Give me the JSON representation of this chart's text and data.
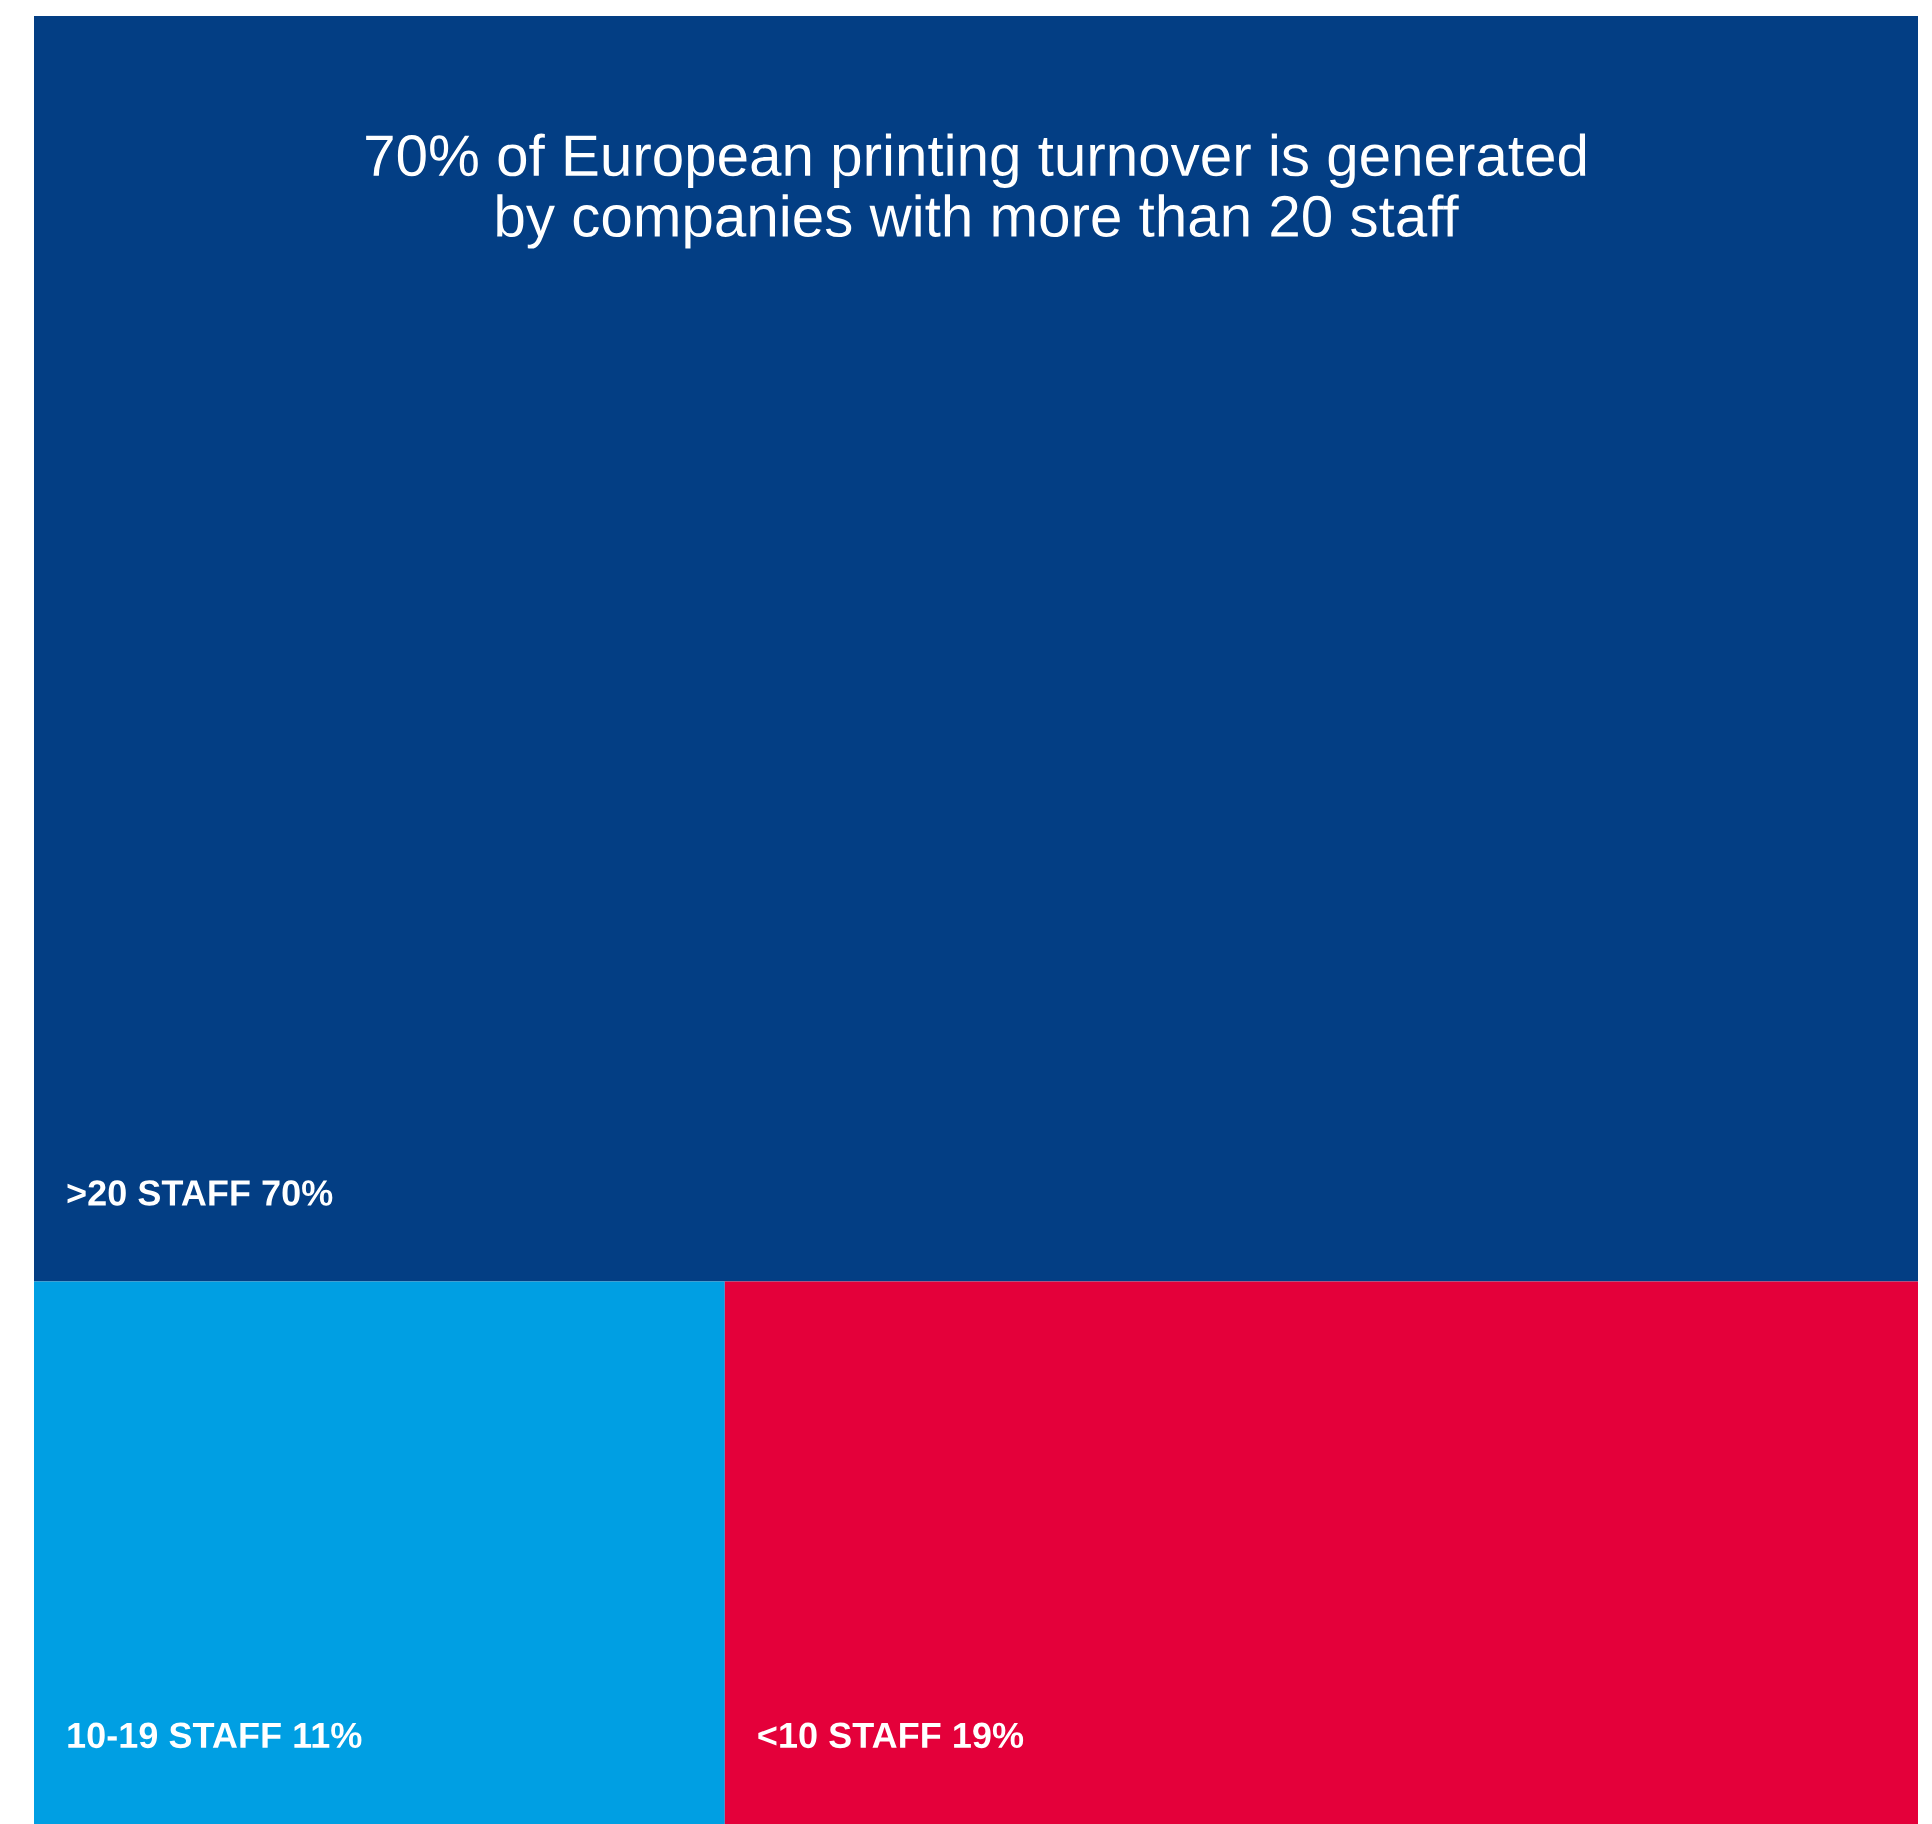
{
  "chart_data": {
    "type": "other",
    "title": "70% of European printing turnover is generated\nby companies with more than 20 staff",
    "categories": [
      ">20 STAFF",
      "10-19 STAFF",
      "<10 STAFF"
    ],
    "values": [
      70,
      11,
      19
    ],
    "value_labels": [
      "70%",
      "11%",
      "19%"
    ],
    "colors": [
      "#033e84",
      "#009fe3",
      "#e4003a"
    ]
  }
}
